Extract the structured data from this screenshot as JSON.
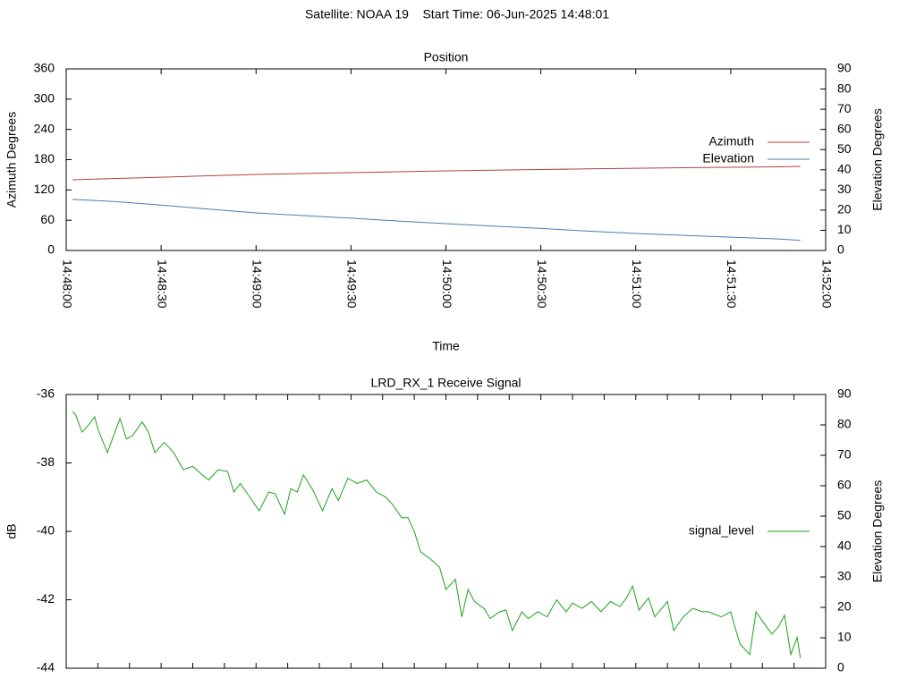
{
  "title": "Satellite: NOAA 19    Start Time: 06-Jun-2025 14:48:01",
  "chart_data": [
    {
      "type": "line",
      "title": "Position",
      "xlabel": "Time",
      "ylabel": "Azimuth Degrees",
      "y2label": "Elevation Degrees",
      "x": [
        "14:48:02",
        "14:48:15",
        "14:48:30",
        "14:48:45",
        "14:49:00",
        "14:49:15",
        "14:49:30",
        "14:49:45",
        "14:50:00",
        "14:50:15",
        "14:50:30",
        "14:50:45",
        "14:51:00",
        "14:51:15",
        "14:51:30",
        "14:51:45",
        "14:51:52"
      ],
      "series": [
        {
          "name": "Azimuth",
          "color": "#b0413e",
          "values": [
            140.0,
            142.6,
            145.3,
            148.0,
            150.7,
            152.6,
            154.4,
            156.1,
            157.8,
            159.2,
            160.5,
            161.8,
            163.0,
            164.0,
            164.9,
            165.8,
            166.7
          ]
        },
        {
          "name": "Elevation",
          "color": "#4a7cb0",
          "axis": "y2",
          "values": [
            25.3,
            24.3,
            22.5,
            20.5,
            18.6,
            17.3,
            16.0,
            14.6,
            13.3,
            12.1,
            10.9,
            9.6,
            8.4,
            7.5,
            6.6,
            5.7,
            5.0
          ]
        }
      ],
      "xlim": [
        "14:48:00",
        "14:52:00"
      ],
      "xticks": [
        "14:48:00",
        "14:48:30",
        "14:49:00",
        "14:49:30",
        "14:50:00",
        "14:50:30",
        "14:51:00",
        "14:51:30",
        "14:52:00"
      ],
      "show_xtick_labels": true,
      "ylim": [
        0,
        360
      ],
      "yticks": [
        0,
        60,
        120,
        180,
        240,
        300,
        360
      ],
      "y2lim": [
        0,
        90
      ],
      "y2ticks": [
        0,
        10,
        20,
        30,
        40,
        50,
        60,
        70,
        80,
        90
      ],
      "legend": "right",
      "grid": false
    },
    {
      "type": "line",
      "title": "LRD_RX_1 Receive Signal",
      "ylabel": "dB",
      "y2label": "Elevation Degrees",
      "x": [
        "14:48:02",
        "14:48:03",
        "14:48:05",
        "14:48:07",
        "14:48:09",
        "14:48:10",
        "14:48:13",
        "14:48:15",
        "14:48:17",
        "14:48:19",
        "14:48:21",
        "14:48:24",
        "14:48:26",
        "14:48:28",
        "14:48:31",
        "14:48:34",
        "14:48:37",
        "14:48:40",
        "14:48:43",
        "14:48:45",
        "14:48:48",
        "14:48:51",
        "14:48:53",
        "14:48:55",
        "14:48:58",
        "14:49:01",
        "14:49:04",
        "14:49:06",
        "14:49:09",
        "14:49:11",
        "14:49:13",
        "14:49:15",
        "14:49:18",
        "14:49:21",
        "14:49:24",
        "14:49:26",
        "14:49:29",
        "14:49:32",
        "14:49:35",
        "14:49:38",
        "14:49:41",
        "14:49:43",
        "14:49:46",
        "14:49:48",
        "14:49:50",
        "14:49:52",
        "14:49:55",
        "14:49:58",
        "14:50:00",
        "14:50:03",
        "14:50:05",
        "14:50:07",
        "14:50:09",
        "14:50:12",
        "14:50:14",
        "14:50:17",
        "14:50:19",
        "14:50:21",
        "14:50:24",
        "14:50:26",
        "14:50:29",
        "14:50:32",
        "14:50:35",
        "14:50:38",
        "14:50:40",
        "14:50:43",
        "14:50:46",
        "14:50:49",
        "14:50:52",
        "14:50:55",
        "14:50:57",
        "14:50:59",
        "14:51:01",
        "14:51:04",
        "14:51:06",
        "14:51:10",
        "14:51:12",
        "14:51:15",
        "14:51:18",
        "14:51:21",
        "14:51:23",
        "14:51:27",
        "14:51:30",
        "14:51:31",
        "14:51:33",
        "14:51:36",
        "14:51:38",
        "14:51:41",
        "14:51:43",
        "14:51:45",
        "14:51:47",
        "14:51:49",
        "14:51:51",
        "14:51:52"
      ],
      "series": [
        {
          "name": "signal_level",
          "color": "#1aa31a",
          "values": [
            -36.5,
            -36.6,
            -37.1,
            -36.9,
            -36.65,
            -37.0,
            -37.7,
            -37.2,
            -36.7,
            -37.3,
            -37.2,
            -36.8,
            -37.1,
            -37.7,
            -37.4,
            -37.7,
            -38.2,
            -38.1,
            -38.35,
            -38.5,
            -38.2,
            -38.25,
            -38.85,
            -38.6,
            -39.0,
            -39.4,
            -38.85,
            -38.9,
            -39.5,
            -38.75,
            -38.85,
            -38.35,
            -38.8,
            -39.4,
            -38.75,
            -39.1,
            -38.45,
            -38.6,
            -38.5,
            -38.85,
            -39.0,
            -39.2,
            -39.6,
            -39.6,
            -40.0,
            -40.6,
            -40.8,
            -41.05,
            -41.7,
            -41.4,
            -42.5,
            -41.7,
            -42.05,
            -42.25,
            -42.55,
            -42.35,
            -42.3,
            -42.9,
            -42.35,
            -42.55,
            -42.35,
            -42.5,
            -42.0,
            -42.35,
            -42.1,
            -42.25,
            -42.05,
            -42.35,
            -42.05,
            -42.2,
            -41.95,
            -41.6,
            -42.3,
            -41.95,
            -42.5,
            -42.05,
            -42.9,
            -42.5,
            -42.25,
            -42.35,
            -42.35,
            -42.5,
            -42.35,
            -42.7,
            -43.3,
            -43.6,
            -42.35,
            -42.75,
            -43.0,
            -42.8,
            -42.45,
            -43.6,
            -43.1,
            -43.7
          ]
        }
      ],
      "xlim": [
        "14:48:00",
        "14:52:00"
      ],
      "xticks": [
        "14:48:00",
        "14:48:10",
        "14:48:20",
        "14:48:30",
        "14:48:40",
        "14:48:50",
        "14:49:00",
        "14:49:10",
        "14:49:20",
        "14:49:30",
        "14:49:40",
        "14:49:50",
        "14:50:00",
        "14:50:10",
        "14:50:20",
        "14:50:30",
        "14:50:40",
        "14:50:50",
        "14:51:00",
        "14:51:10",
        "14:51:20",
        "14:51:30",
        "14:51:40",
        "14:51:50",
        "14:52:00"
      ],
      "show_xtick_labels": false,
      "ylim": [
        -44,
        -36
      ],
      "yticks": [
        -44,
        -42,
        -40,
        -38,
        -36
      ],
      "y2lim": [
        0,
        90
      ],
      "y2ticks": [
        0,
        10,
        20,
        30,
        40,
        50,
        60,
        70,
        80,
        90
      ],
      "legend": "right",
      "grid": false
    }
  ]
}
